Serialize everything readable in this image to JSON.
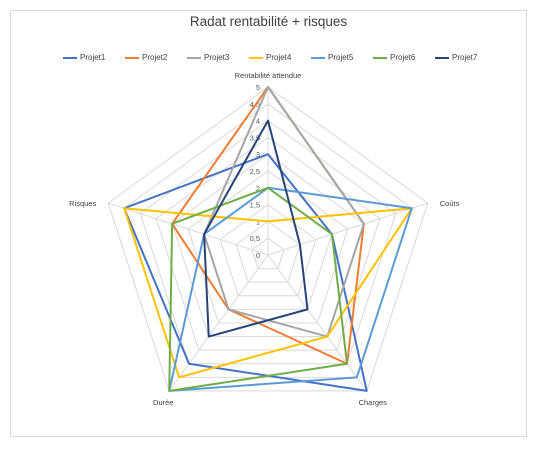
{
  "chart_data": {
    "type": "radar",
    "title": "Radat rentabilité + risques",
    "axes": [
      "Rentabilité attendue",
      "Coûts",
      "Charges",
      "Durée",
      "Risques"
    ],
    "ticks": [
      "0",
      "0,5",
      "1",
      "1,5",
      "2",
      "2,5",
      "3",
      "3,5",
      "4",
      "4,5",
      "5"
    ],
    "rlim": [
      0,
      5
    ],
    "grid": true,
    "legend_position": "top",
    "series": [
      {
        "name": "Projet1",
        "color": "#4472C4",
        "values": [
          3,
          2,
          5,
          4,
          4.5
        ]
      },
      {
        "name": "Projet2",
        "color": "#ED7D31",
        "values": [
          5,
          3,
          4,
          2,
          3
        ]
      },
      {
        "name": "Projet3",
        "color": "#A5A5A5",
        "values": [
          5,
          3,
          3,
          2,
          2
        ]
      },
      {
        "name": "Projet4",
        "color": "#FFC000",
        "values": [
          1,
          4.5,
          3,
          4.5,
          4.5
        ]
      },
      {
        "name": "Projet5",
        "color": "#5B9BD5",
        "values": [
          2,
          4.5,
          4.5,
          5,
          2
        ]
      },
      {
        "name": "Projet6",
        "color": "#70AD47",
        "values": [
          2,
          2,
          4,
          5,
          3
        ]
      },
      {
        "name": "Projet7",
        "color": "#264478",
        "values": [
          4,
          1,
          2,
          3,
          2
        ]
      }
    ]
  }
}
